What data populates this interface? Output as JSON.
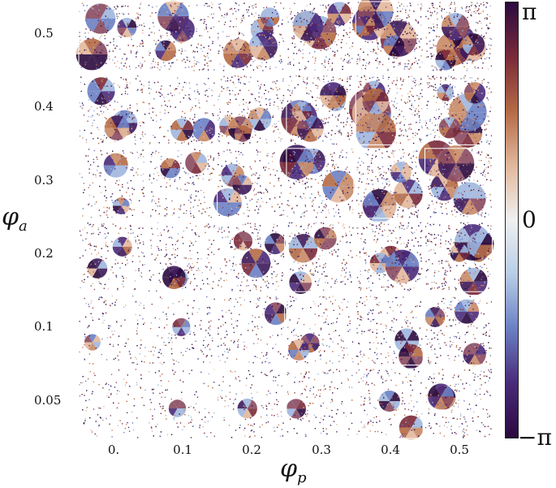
{
  "figure": {
    "x_axis_label": "φ",
    "x_axis_sub": "p",
    "y_axis_label": "φ",
    "y_axis_sub": "a",
    "columns": [
      "0.",
      "0.1",
      "0.2",
      "0.3",
      "0.4",
      "0.5"
    ],
    "rows": [
      "0.5",
      "0.4",
      "0.3",
      "0.2",
      "0.1",
      "0.05"
    ],
    "colorbar": {
      "ticks": [
        "π",
        "0",
        "−π"
      ],
      "range": [
        "-π",
        "π"
      ],
      "colors": [
        "#2a0a3e",
        "#4a2a7a",
        "#6a7fc4",
        "#b8cde6",
        "#f0f0f0",
        "#e2b79c",
        "#b56a45",
        "#7a2a3a",
        "#2a0a3e"
      ]
    }
  }
}
